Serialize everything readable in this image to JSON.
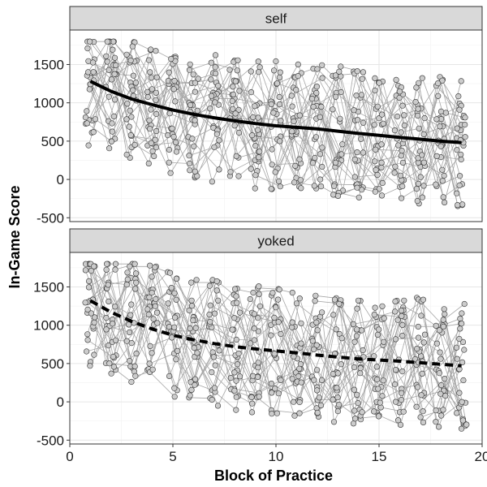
{
  "chart_data": {
    "type": "scatter",
    "xlabel": "Block of Practice",
    "ylabel": "In-Game Score",
    "xlim": [
      0,
      20
    ],
    "ylim": [
      -550,
      1950
    ],
    "x_ticks": [
      0,
      5,
      10,
      15,
      20
    ],
    "y_ticks": [
      -500,
      0,
      500,
      1000,
      1500
    ],
    "grid": true,
    "colors": {
      "point_fill": "#cccccc",
      "point_stroke": "#333333",
      "participant_line": "#a6a6a6",
      "trend_line": "#000000",
      "strip_fill": "#d9d9d9"
    },
    "panels": [
      {
        "label": "self",
        "trend_style": "solid",
        "trend": [
          {
            "x": 1,
            "y": 1280
          },
          {
            "x": 2,
            "y": 1150
          },
          {
            "x": 3,
            "y": 1050
          },
          {
            "x": 4,
            "y": 975
          },
          {
            "x": 5,
            "y": 905
          },
          {
            "x": 6,
            "y": 850
          },
          {
            "x": 7,
            "y": 805
          },
          {
            "x": 8,
            "y": 765
          },
          {
            "x": 9,
            "y": 730
          },
          {
            "x": 10,
            "y": 700
          },
          {
            "x": 11,
            "y": 680
          },
          {
            "x": 12,
            "y": 660
          },
          {
            "x": 13,
            "y": 630
          },
          {
            "x": 14,
            "y": 600
          },
          {
            "x": 15,
            "y": 575
          },
          {
            "x": 16,
            "y": 550
          },
          {
            "x": 17,
            "y": 525
          },
          {
            "x": 18,
            "y": 500
          },
          {
            "x": 19,
            "y": 480
          }
        ]
      },
      {
        "label": "yoked",
        "trend_style": "dashed",
        "trend": [
          {
            "x": 1,
            "y": 1320
          },
          {
            "x": 2,
            "y": 1170
          },
          {
            "x": 3,
            "y": 1050
          },
          {
            "x": 4,
            "y": 950
          },
          {
            "x": 5,
            "y": 870
          },
          {
            "x": 6,
            "y": 810
          },
          {
            "x": 7,
            "y": 760
          },
          {
            "x": 8,
            "y": 720
          },
          {
            "x": 9,
            "y": 690
          },
          {
            "x": 10,
            "y": 665
          },
          {
            "x": 11,
            "y": 640
          },
          {
            "x": 12,
            "y": 610
          },
          {
            "x": 13,
            "y": 585
          },
          {
            "x": 14,
            "y": 560
          },
          {
            "x": 15,
            "y": 545
          },
          {
            "x": 16,
            "y": 530
          },
          {
            "x": 17,
            "y": 510
          },
          {
            "x": 18,
            "y": 490
          },
          {
            "x": 19,
            "y": 470
          }
        ]
      }
    ]
  }
}
